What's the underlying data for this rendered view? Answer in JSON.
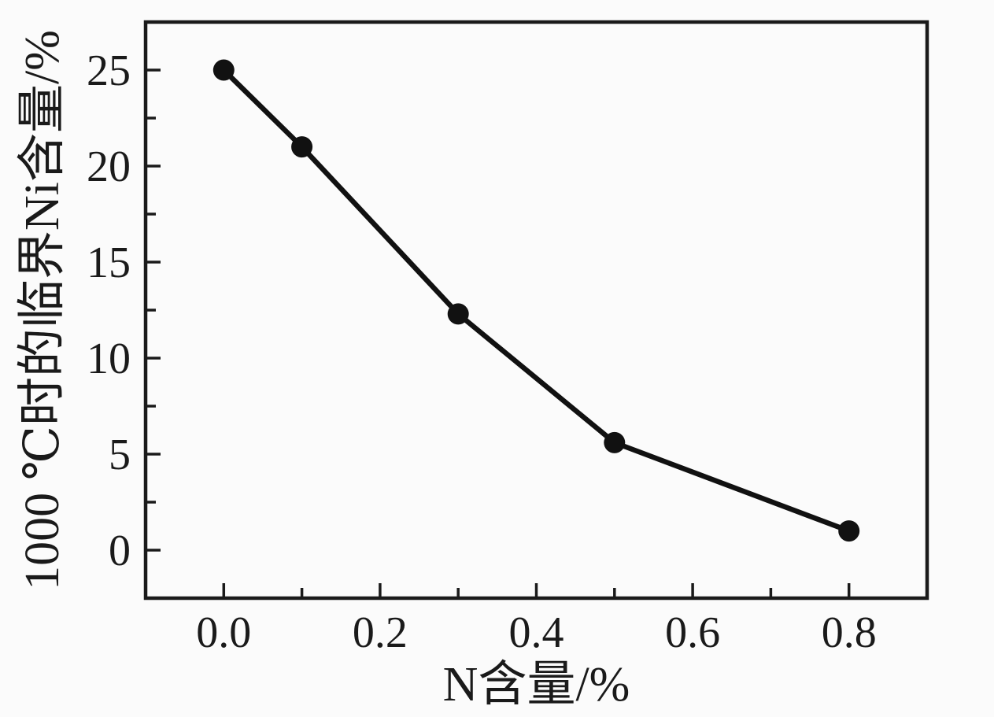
{
  "figure": {
    "background": "#fbfbfb",
    "ink": "#1a1a1a",
    "line_color": "#111111",
    "marker_color": "#111111"
  },
  "chart_data": {
    "type": "line",
    "title": "",
    "xlabel": "N含量/%",
    "ylabel": "1000 ℃时的临界Ni含量/%",
    "x": [
      0.0,
      0.1,
      0.3,
      0.5,
      0.8
    ],
    "y": [
      25.0,
      21.0,
      12.3,
      5.6,
      1.0
    ],
    "xlim": [
      -0.1,
      0.9
    ],
    "ylim": [
      -2.5,
      27.5
    ],
    "x_major_ticks": [
      0.0,
      0.2,
      0.4,
      0.6,
      0.8
    ],
    "x_tick_labels": [
      "0.0",
      "0.2",
      "0.4",
      "0.6",
      "0.8"
    ],
    "x_minor_ticks": [
      0.1,
      0.3,
      0.5,
      0.7
    ],
    "y_major_ticks": [
      0,
      5,
      10,
      15,
      20,
      25
    ],
    "y_tick_labels": [
      "0",
      "5",
      "10",
      "15",
      "20",
      "25"
    ],
    "y_minor_ticks": [
      2.5,
      7.5,
      12.5,
      17.5,
      22.5
    ],
    "grid": false,
    "legend": "none",
    "marker": "filled-circle",
    "tick_direction": "in"
  }
}
